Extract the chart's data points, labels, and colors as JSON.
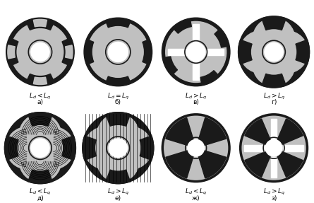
{
  "bg_color": "#ffffff",
  "rotor_gray": "#c0c0c0",
  "magnet_black": "#1a1a1a",
  "white": "#ffffff",
  "labels_row1": [
    "$L_d<L_q$",
    "$L_d=L_q$",
    "$L_d>L_q$",
    "$L_d>L_q$"
  ],
  "sublabels_row1": [
    "а)",
    "б)",
    "в)",
    "г)"
  ],
  "labels_row2": [
    "$L_d<L_q$",
    "$L_d>L_q$",
    "$L_d<L_q$",
    "$L_d>L_q$"
  ],
  "sublabels_row2": [
    "д)",
    "е)",
    "ж)",
    "з)"
  ]
}
